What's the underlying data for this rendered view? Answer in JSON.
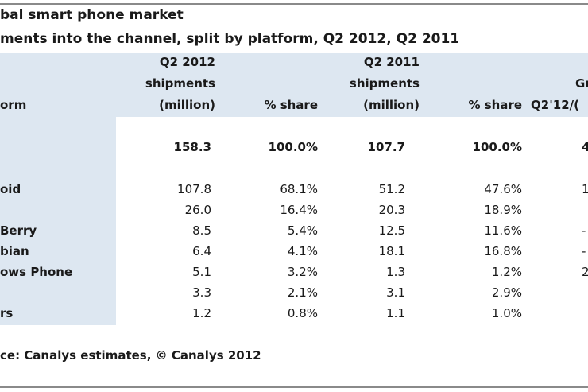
{
  "title": "bal smart phone market",
  "subtitle": "ments into the channel, split by platform, Q2 2012, Q2 2011",
  "header": {
    "platform": "orm",
    "q2_2012": [
      "Q2 2012",
      "shipments",
      "(million)"
    ],
    "share_2012": "% share",
    "q2_2011": [
      "Q2 2011",
      "shipments",
      "(million)"
    ],
    "share_2011": "% share",
    "growth": [
      "Gr",
      "Q2'12/("
    ]
  },
  "table": {
    "rows": [
      [
        null,
        "158.3",
        "100.0%",
        "107.7",
        "100.0%",
        "4"
      ],
      [
        "oid",
        "107.8",
        "68.1%",
        "51.2",
        "47.6%",
        "1"
      ],
      [
        null,
        "26.0",
        "16.4%",
        "20.3",
        "18.9%",
        null
      ],
      [
        "Berry",
        "8.5",
        "5.4%",
        "12.5",
        "11.6%",
        "-"
      ],
      [
        "bian",
        "6.4",
        "4.1%",
        "18.1",
        "16.8%",
        "-"
      ],
      [
        "ows Phone",
        "5.1",
        "3.2%",
        "1.3",
        "1.2%",
        "2"
      ],
      [
        null,
        "3.3",
        "2.1%",
        "3.1",
        "2.9%",
        null
      ],
      [
        "rs",
        "1.2",
        "0.8%",
        "1.1",
        "1.0%",
        null
      ]
    ]
  },
  "source": "ce: Canalys estimates, © Canalys 2012"
}
